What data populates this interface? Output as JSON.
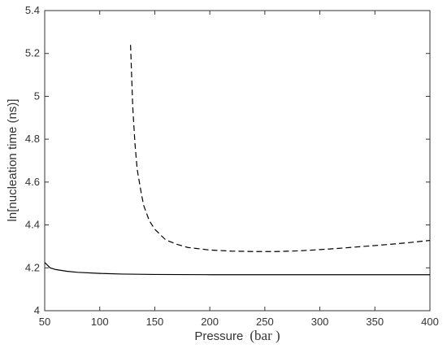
{
  "chart_data": {
    "type": "line",
    "xlabel_main": "Pressure",
    "xlabel_unit": "(bar )",
    "ylabel": "ln[nucleation time (ns)]",
    "xlim": [
      50,
      400
    ],
    "ylim": [
      4,
      5.4
    ],
    "xticks": [
      50,
      100,
      150,
      200,
      250,
      300,
      350,
      400
    ],
    "yticks": [
      4,
      4.2,
      4.4,
      4.6,
      4.8,
      5,
      5.2,
      5.4
    ],
    "grid": false,
    "legend": "none",
    "series": [
      {
        "style": "dashed",
        "color": "#000000",
        "x": [
          128,
          130,
          132,
          134,
          136,
          138,
          140,
          145,
          150,
          160,
          170,
          180,
          200,
          220,
          240,
          260,
          280,
          300,
          320,
          340,
          360,
          380,
          400
        ],
        "y": [
          5.24,
          4.95,
          4.78,
          4.66,
          4.6,
          4.54,
          4.49,
          4.42,
          4.38,
          4.33,
          4.31,
          4.295,
          4.283,
          4.278,
          4.276,
          4.276,
          4.279,
          4.285,
          4.292,
          4.3,
          4.308,
          4.317,
          4.328
        ]
      },
      {
        "style": "solid",
        "color": "#000000",
        "x": [
          50,
          55,
          60,
          70,
          80,
          100,
          120,
          150,
          200,
          250,
          300,
          350,
          400
        ],
        "y": [
          4.225,
          4.2,
          4.192,
          4.184,
          4.179,
          4.174,
          4.171,
          4.169,
          4.168,
          4.168,
          4.168,
          4.168,
          4.168
        ]
      }
    ]
  }
}
